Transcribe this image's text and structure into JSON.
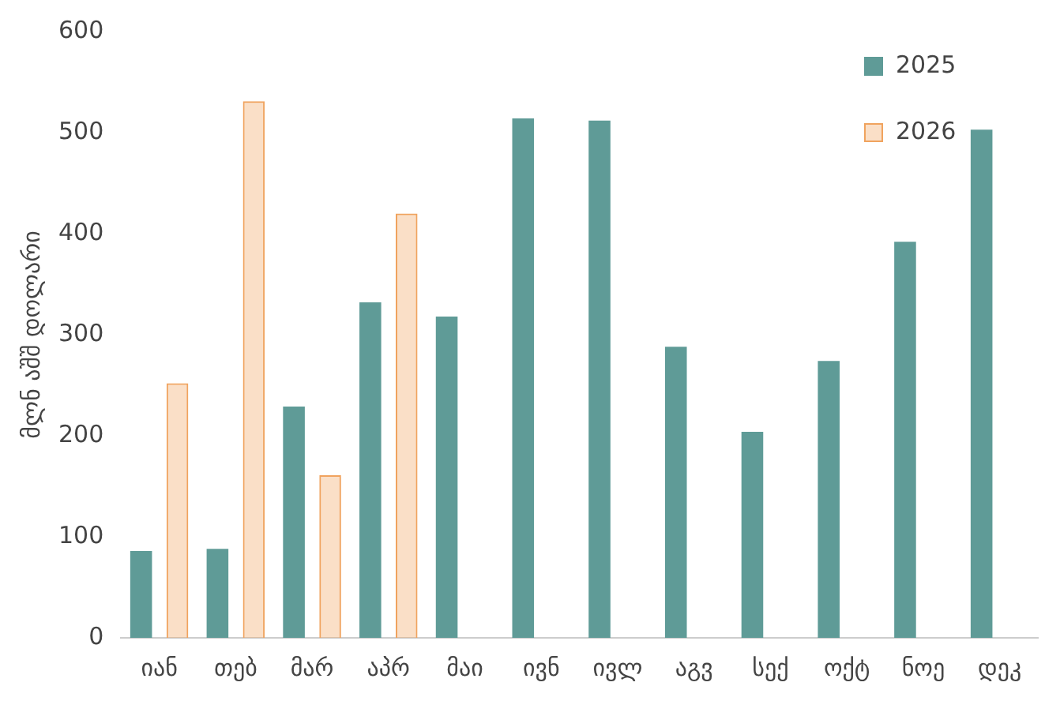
{
  "chart_data": {
    "type": "bar",
    "ylabel": "მლნ აშშ დოლარი",
    "categories": [
      "იან",
      "თებ",
      "მარ",
      "აპრ",
      "მაი",
      "ივნ",
      "ივლ",
      "აგვ",
      "სექ",
      "ოქტ",
      "ნოე",
      "დეკ"
    ],
    "series": [
      {
        "name": "2025",
        "color": "#5f9b97",
        "values": [
          86,
          88,
          229,
          332,
          318,
          514,
          512,
          288,
          204,
          274,
          392,
          503
        ]
      },
      {
        "name": "2026",
        "color": "#f0a35e",
        "values": [
          252,
          531,
          161,
          420,
          null,
          null,
          null,
          null,
          null,
          null,
          null,
          null
        ]
      }
    ],
    "ylim": [
      0,
      600
    ],
    "yticks": [
      0,
      100,
      200,
      300,
      400,
      500,
      600
    ],
    "grid": false,
    "legend": "top right"
  }
}
